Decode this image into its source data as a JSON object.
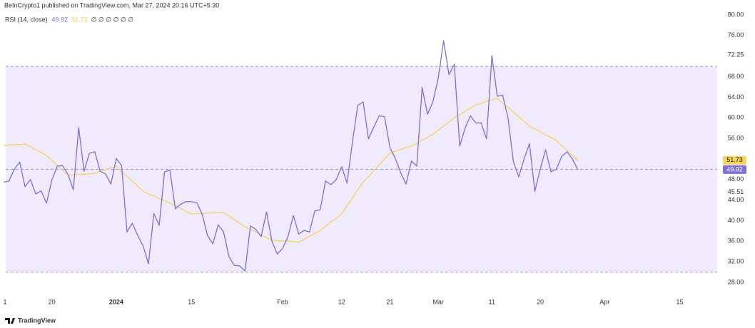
{
  "chart_data": {
    "type": "line",
    "title": "BeInCrypto1 published on TradingView.com, Mar 27, 2024 20:16 UTC+5:30",
    "legend": "RSI (14, close)",
    "legend_extra": "∅ ∅ ∅ ∅ ∅ ∅",
    "footer": "TradingView",
    "categories": [
      "1",
      null,
      null,
      null,
      null,
      null,
      null,
      null,
      null,
      "20",
      null,
      null,
      null,
      null,
      null,
      null,
      null,
      null,
      null,
      null,
      null,
      "2024",
      null,
      null,
      null,
      null,
      null,
      null,
      null,
      null,
      null,
      null,
      null,
      null,
      null,
      "15",
      null,
      null,
      null,
      null,
      null,
      null,
      null,
      null,
      null,
      null,
      null,
      null,
      null,
      null,
      null,
      null,
      "Feb",
      null,
      null,
      null,
      null,
      null,
      null,
      null,
      null,
      null,
      null,
      "12",
      null,
      null,
      null,
      null,
      null,
      null,
      null,
      null,
      "21",
      null,
      null,
      null,
      null,
      null,
      null,
      null,
      null,
      "Mar",
      null,
      null,
      null,
      null,
      null,
      null,
      null,
      null,
      null,
      "11",
      null,
      null,
      null,
      null,
      null,
      null,
      null,
      null,
      "20",
      null,
      null,
      null,
      null,
      null,
      null,
      null,
      null,
      null,
      null,
      null,
      "Apr",
      null,
      null,
      null,
      null,
      null,
      null,
      null,
      null,
      null,
      null,
      null,
      null,
      null,
      "15"
    ],
    "series": [
      {
        "color": "#7e6fd8",
        "values": [
          47.5,
          47.7,
          50,
          51.4,
          46.6,
          48,
          45.2,
          45.8,
          43.4,
          47.9,
          50.6,
          50.7,
          49,
          46,
          58.1,
          49.6,
          53.1,
          53.4,
          49.6,
          49.1,
          47.1,
          52.1,
          50.7,
          37.8,
          39.5,
          37.1,
          35.1,
          31.6,
          41.4,
          39.1,
          49.5,
          49.8,
          42.3,
          43.2,
          43.7,
          43.7,
          43.5,
          41.3,
          37.1,
          35.5,
          39.2,
          37.8,
          33,
          31.3,
          31.2,
          30.2,
          39,
          38.3,
          36.9,
          41.7,
          36,
          33.5,
          34.6,
          36.9,
          41,
          37.4,
          38.1,
          37.8,
          41.9,
          42.1,
          47.7,
          47,
          48,
          50.5,
          47.3,
          55.2,
          62.4,
          63.1,
          55.9,
          58.2,
          60.4,
          60.2,
          54.2,
          52.1,
          49.3,
          47.1,
          51.6,
          50.6,
          65.9,
          60.7,
          63.1,
          67.7,
          75,
          68.4,
          70.4,
          54.5,
          58,
          60.4,
          59,
          59,
          55.9,
          72.1,
          64.2,
          64.4,
          60,
          51.5,
          48.5,
          52,
          55,
          45.7,
          50,
          53.8,
          49.5,
          50,
          52.5,
          53.4,
          52,
          49.92,
          null,
          null,
          null,
          null,
          null,
          null,
          null,
          null,
          null,
          null,
          null,
          null,
          null,
          null,
          null,
          null,
          null,
          null,
          null
        ]
      },
      {
        "color": "#f4d35e",
        "values": [
          54.6,
          54.7,
          54.8,
          54.8,
          54.9,
          54.4,
          53.8,
          53.3,
          52.7,
          51.7,
          50.8,
          49.8,
          48.8,
          48.9,
          49,
          49,
          49.1,
          49.2,
          49.6,
          49.9,
          50.3,
          50.6,
          49.6,
          48.6,
          47.7,
          46.7,
          45.7,
          45.2,
          44.8,
          44.3,
          43.9,
          43.4,
          42.9,
          42.4,
          41.8,
          41.3,
          41.4,
          41.4,
          41.5,
          41.5,
          41.6,
          41.6,
          40.9,
          40.2,
          39.5,
          38.8,
          38.3,
          37.8,
          37.2,
          36.7,
          36.2,
          36.1,
          36,
          36,
          35.9,
          35.8,
          36.4,
          37,
          37.5,
          38.1,
          38.9,
          39.7,
          40.5,
          41.3,
          42.9,
          44.4,
          46,
          47.5,
          48.6,
          49.7,
          50.9,
          52,
          53.1,
          53.5,
          53.8,
          54.2,
          54.5,
          55.1,
          55.6,
          56.2,
          56.8,
          57.6,
          58.4,
          59.2,
          60,
          60.6,
          61.3,
          61.9,
          62.5,
          62.8,
          63.2,
          63.5,
          63.8,
          62.9,
          62,
          61.1,
          60.2,
          59.3,
          58.4,
          57.8,
          57.3,
          56.7,
          56.2,
          55.6,
          54.6,
          53.7,
          52.7,
          51.73,
          null,
          null,
          null,
          null,
          null,
          null,
          null,
          null,
          null,
          null,
          null,
          null,
          null,
          null,
          null,
          null,
          null,
          null,
          null
        ]
      }
    ],
    "ylim": [
      26.75,
      81.25
    ],
    "yticks": [
      {
        "value": 80,
        "label": "80.00"
      },
      {
        "value": 76,
        "label": "76.00"
      },
      72.25,
      {
        "value": 68,
        "label": "68.00"
      },
      {
        "value": 64,
        "label": "64.00"
      },
      {
        "value": 60,
        "label": "60.00"
      },
      {
        "value": 56,
        "label": "56.00"
      },
      {
        "value": 48,
        "label": "48.00"
      },
      45.51,
      {
        "value": 44,
        "label": "44.00"
      },
      {
        "value": 40,
        "label": "40.00"
      },
      {
        "value": 36,
        "label": "36.00"
      },
      {
        "value": 32,
        "label": "32.00"
      },
      {
        "value": 28,
        "label": "28.00"
      }
    ],
    "band": [
      30,
      70
    ],
    "band_color": "#efebfc",
    "hlines": [
      70,
      50,
      30
    ],
    "grid": false
  }
}
